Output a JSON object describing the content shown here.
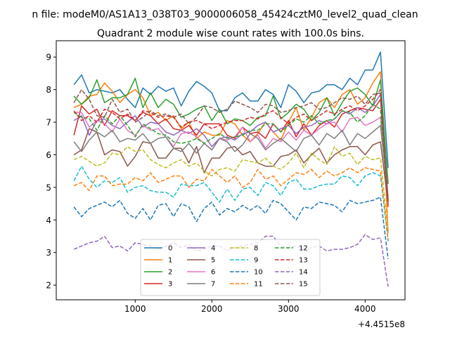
{
  "figure": {
    "suptitle": "n file: modeM0/AS1A13_038T03_9000006058_45424cztM0_level2_quad_clean",
    "title": "Quadrant 2 module wise count rates with 100.0s bins."
  },
  "chart_data": {
    "type": "line",
    "xlim": [
      -30,
      4520
    ],
    "ylim": [
      1.55,
      9.5
    ],
    "x_offset_label": "+4.4515e8",
    "xticks": [
      1000,
      2000,
      3000,
      4000
    ],
    "yticks": [
      2,
      3,
      4,
      5,
      6,
      7,
      8,
      9
    ],
    "x": [
      200,
      300,
      400,
      500,
      600,
      700,
      800,
      900,
      1000,
      1100,
      1200,
      1300,
      1400,
      1500,
      1600,
      1700,
      1800,
      1900,
      2000,
      2100,
      2200,
      2300,
      2400,
      2500,
      2600,
      2700,
      2800,
      2900,
      3000,
      3100,
      3200,
      3300,
      3400,
      3500,
      3600,
      3700,
      3800,
      3900,
      4000,
      4100,
      4200,
      4300
    ],
    "legend": {
      "location": "lower-center",
      "columns": 4
    },
    "series": [
      {
        "name": "0",
        "color": "#1f77b4",
        "dash": "solid",
        "values": [
          8.15,
          8.45,
          7.9,
          8.0,
          7.95,
          7.9,
          8.0,
          7.7,
          7.45,
          8.05,
          7.85,
          8.1,
          7.95,
          8.05,
          7.5,
          7.95,
          8.25,
          8.1,
          7.9,
          7.35,
          7.35,
          7.75,
          7.9,
          7.65,
          7.65,
          8.0,
          7.85,
          7.45,
          8.15,
          7.95,
          7.6,
          7.9,
          7.95,
          8.15,
          8.15,
          8.0,
          8.35,
          8.15,
          8.6,
          8.6,
          9.15,
          5.6
        ]
      },
      {
        "name": "1",
        "color": "#ff7f0e",
        "dash": "solid",
        "values": [
          7.45,
          7.55,
          7.8,
          7.85,
          8.2,
          7.95,
          7.6,
          7.85,
          8.0,
          7.75,
          7.2,
          7.3,
          7.05,
          7.2,
          6.8,
          7.0,
          6.5,
          6.7,
          6.6,
          6.6,
          7.05,
          6.95,
          6.6,
          6.4,
          6.65,
          7.0,
          6.7,
          6.45,
          7.0,
          7.45,
          6.75,
          7.15,
          7.6,
          7.75,
          7.45,
          7.85,
          8.0,
          7.55,
          7.75,
          8.2,
          8.55,
          3.6
        ]
      },
      {
        "name": "2",
        "color": "#2ca02c",
        "dash": "solid",
        "values": [
          7.8,
          7.55,
          7.75,
          8.3,
          7.6,
          7.75,
          7.75,
          7.85,
          8.35,
          7.45,
          7.9,
          7.45,
          7.7,
          7.55,
          7.15,
          7.25,
          7.4,
          7.5,
          7.05,
          7.4,
          6.95,
          7.1,
          7.05,
          6.9,
          7.15,
          7.2,
          7.8,
          7.1,
          7.3,
          7.55,
          7.4,
          7.05,
          7.3,
          7.75,
          7.2,
          7.6,
          7.95,
          8.05,
          7.85,
          7.5,
          8.3,
          5.1
        ]
      },
      {
        "name": "3",
        "color": "#d62728",
        "dash": "solid",
        "values": [
          6.6,
          7.5,
          7.25,
          7.4,
          6.9,
          7.35,
          7.2,
          7.2,
          7.05,
          7.3,
          7.2,
          6.95,
          7.1,
          6.8,
          6.75,
          6.9,
          6.6,
          6.95,
          6.95,
          6.95,
          6.6,
          6.5,
          6.85,
          6.65,
          6.7,
          6.5,
          6.95,
          6.7,
          7.05,
          6.55,
          6.95,
          6.6,
          6.9,
          7.05,
          6.85,
          7.25,
          7.35,
          7.45,
          7.4,
          7.35,
          7.7,
          4.55
        ]
      },
      {
        "name": "4",
        "color": "#9467bd",
        "dash": "solid",
        "values": [
          7.05,
          7.2,
          6.6,
          7.05,
          7.1,
          6.9,
          6.8,
          7.0,
          7.2,
          6.85,
          7.0,
          6.95,
          6.7,
          6.6,
          6.75,
          6.65,
          6.8,
          6.6,
          6.25,
          6.5,
          6.55,
          6.45,
          6.65,
          6.7,
          6.9,
          7.0,
          6.7,
          6.8,
          6.9,
          6.65,
          6.85,
          6.9,
          7.05,
          6.95,
          7.1,
          7.35,
          7.25,
          7.45,
          7.3,
          7.5,
          7.85,
          4.6
        ]
      },
      {
        "name": "5",
        "color": "#8c564b",
        "dash": "solid",
        "values": [
          6.0,
          6.15,
          6.8,
          6.7,
          6.0,
          6.15,
          6.1,
          5.65,
          5.95,
          6.4,
          6.35,
          5.9,
          5.9,
          6.2,
          6.2,
          5.75,
          6.25,
          5.45,
          5.9,
          5.9,
          6.2,
          6.25,
          6.0,
          6.1,
          5.75,
          5.65,
          5.65,
          5.95,
          6.0,
          6.15,
          5.75,
          6.0,
          6.2,
          5.75,
          6.0,
          6.15,
          6.25,
          6.25,
          6.0,
          6.3,
          6.4,
          4.5
        ]
      },
      {
        "name": "6",
        "color": "#e377c2",
        "dash": "solid",
        "values": [
          7.3,
          7.3,
          6.85,
          7.05,
          6.95,
          6.7,
          7.1,
          6.75,
          6.6,
          6.9,
          6.75,
          6.8,
          6.55,
          6.25,
          6.65,
          6.7,
          6.55,
          6.35,
          6.15,
          6.5,
          6.45,
          6.55,
          6.85,
          6.4,
          6.6,
          6.2,
          6.5,
          6.4,
          6.7,
          6.45,
          6.75,
          6.6,
          6.8,
          6.95,
          7.0,
          6.7,
          7.1,
          7.15,
          6.9,
          7.0,
          7.15,
          4.7
        ]
      },
      {
        "name": "7",
        "color": "#7f7f7f",
        "dash": "solid",
        "values": [
          6.4,
          6.1,
          6.45,
          6.7,
          6.55,
          6.75,
          6.4,
          6.5,
          6.45,
          6.65,
          6.35,
          6.5,
          6.55,
          6.2,
          6.1,
          6.35,
          6.05,
          6.35,
          6.15,
          6.5,
          6.4,
          6.1,
          6.3,
          6.65,
          6.5,
          6.15,
          6.35,
          6.5,
          6.3,
          6.1,
          6.5,
          6.6,
          6.3,
          6.65,
          6.5,
          6.75,
          6.3,
          6.65,
          6.5,
          6.7,
          6.9,
          4.65
        ]
      },
      {
        "name": "8",
        "color": "#bcbd22",
        "dash": "dashed",
        "values": [
          5.85,
          5.95,
          5.8,
          5.65,
          5.75,
          6.05,
          6.0,
          6.25,
          6.1,
          6.15,
          5.85,
          5.7,
          5.6,
          5.75,
          5.85,
          5.65,
          5.75,
          5.5,
          5.35,
          5.55,
          5.6,
          5.5,
          5.85,
          5.8,
          5.75,
          5.9,
          5.65,
          5.55,
          5.75,
          6.05,
          5.6,
          6.05,
          5.85,
          5.7,
          6.25,
          5.95,
          6.05,
          5.7,
          5.95,
          5.85,
          5.9,
          3.65
        ]
      },
      {
        "name": "9",
        "color": "#17becf",
        "dash": "dashed",
        "values": [
          5.2,
          5.65,
          5.25,
          5.0,
          5.2,
          5.15,
          5.3,
          4.85,
          5.0,
          5.05,
          4.9,
          4.85,
          4.85,
          4.7,
          5.1,
          5.05,
          5.05,
          5.15,
          4.85,
          4.55,
          4.95,
          4.6,
          4.95,
          5.0,
          4.75,
          5.15,
          5.05,
          4.75,
          5.15,
          5.25,
          4.95,
          4.95,
          5.05,
          5.1,
          5.1,
          5.35,
          5.3,
          5.05,
          5.35,
          5.45,
          5.35,
          3.35
        ]
      },
      {
        "name": "10",
        "color": "#1f77b4",
        "dash": "dashed",
        "values": [
          4.4,
          4.1,
          4.35,
          4.45,
          4.55,
          4.4,
          4.6,
          4.2,
          4.05,
          4.35,
          4.0,
          4.45,
          4.5,
          4.1,
          4.5,
          4.4,
          3.95,
          4.35,
          4.55,
          4.15,
          4.35,
          4.25,
          4.45,
          4.3,
          4.45,
          4.2,
          4.6,
          4.5,
          4.25,
          4.0,
          4.4,
          4.35,
          4.55,
          4.5,
          4.45,
          4.25,
          4.6,
          4.5,
          4.55,
          4.6,
          4.7,
          2.8
        ]
      },
      {
        "name": "11",
        "color": "#ff7f0e",
        "dash": "dashed",
        "values": [
          5.05,
          5.15,
          4.9,
          5.35,
          5.35,
          5.05,
          5.1,
          5.1,
          5.3,
          5.2,
          5.45,
          5.15,
          5.25,
          5.35,
          5.35,
          5.0,
          5.25,
          5.2,
          5.55,
          5.35,
          5.15,
          5.35,
          5.0,
          5.15,
          5.55,
          5.25,
          5.35,
          5.05,
          5.25,
          5.45,
          5.4,
          5.55,
          5.3,
          5.5,
          5.35,
          5.45,
          5.6,
          5.45,
          5.6,
          5.55,
          5.5,
          3.4
        ]
      },
      {
        "name": "12",
        "color": "#2ca02c",
        "dash": "dashed",
        "values": [
          7.3,
          7.15,
          7.1,
          6.75,
          7.2,
          6.95,
          7.2,
          6.9,
          6.55,
          6.95,
          6.8,
          6.65,
          6.6,
          6.4,
          6.35,
          6.4,
          6.5,
          6.35,
          6.5,
          6.65,
          6.5,
          6.55,
          6.6,
          6.75,
          6.75,
          6.95,
          6.95,
          6.7,
          6.9,
          7.1,
          7.0,
          7.2,
          6.95,
          7.05,
          7.1,
          7.35,
          7.3,
          7.0,
          7.2,
          7.55,
          7.4,
          4.6
        ]
      },
      {
        "name": "13",
        "color": "#d62728",
        "dash": "dashed",
        "values": [
          7.35,
          7.05,
          7.2,
          7.0,
          7.4,
          7.3,
          7.1,
          7.25,
          7.05,
          7.35,
          7.3,
          7.15,
          7.2,
          7.15,
          6.85,
          7.0,
          7.05,
          6.95,
          6.8,
          6.9,
          7.0,
          7.05,
          7.05,
          7.15,
          7.1,
          7.25,
          7.35,
          7.15,
          6.95,
          7.15,
          7.25,
          7.05,
          7.2,
          7.35,
          7.25,
          7.4,
          7.5,
          7.35,
          7.5,
          7.7,
          8.0,
          4.4
        ]
      },
      {
        "name": "14",
        "color": "#9467bd",
        "dash": "dashed",
        "values": [
          3.1,
          3.2,
          3.3,
          3.35,
          3.5,
          3.15,
          3.2,
          3.05,
          3.3,
          3.25,
          3.2,
          3.1,
          3.2,
          3.3,
          3.15,
          3.25,
          3.05,
          3.1,
          3.2,
          3.2,
          3.05,
          3.15,
          3.2,
          3.25,
          3.3,
          3.5,
          3.5,
          3.2,
          3.15,
          3.2,
          3.1,
          3.15,
          3.2,
          3.05,
          3.1,
          3.1,
          3.15,
          3.25,
          3.55,
          3.4,
          3.45,
          1.95
        ]
      },
      {
        "name": "15",
        "color": "#8c564b",
        "dash": "dashed",
        "values": [
          7.6,
          8.0,
          7.7,
          7.2,
          7.15,
          7.7,
          7.3,
          7.4,
          7.0,
          7.15,
          7.35,
          7.2,
          7.25,
          7.15,
          7.25,
          6.95,
          7.15,
          7.5,
          7.45,
          7.3,
          7.4,
          7.65,
          7.55,
          7.45,
          7.3,
          7.55,
          7.5,
          7.3,
          7.35,
          7.45,
          7.5,
          7.6,
          7.4,
          7.45,
          7.6,
          7.75,
          7.7,
          7.8,
          7.55,
          7.85,
          7.9,
          4.6
        ]
      }
    ]
  }
}
